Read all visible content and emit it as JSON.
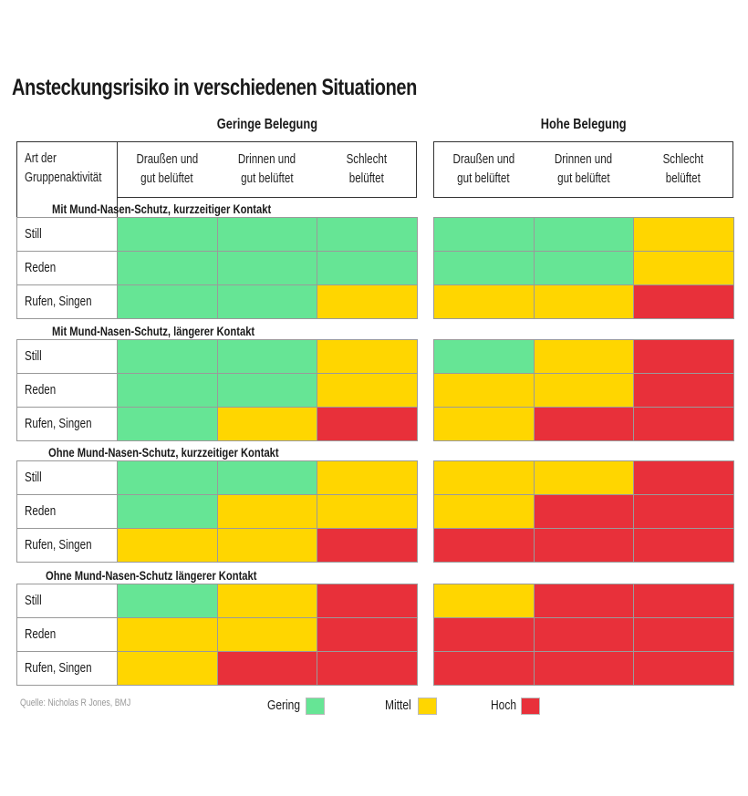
{
  "colors": {
    "Gering": "#66e595",
    "Mittel": "#ffd600",
    "Hoch": "#e8303a"
  },
  "chart_data": {
    "type": "heatmap",
    "title": "Ansteckungsrisiko in verschiedenen Situationen",
    "row_header": "Art der Gruppenaktivität",
    "groups": [
      "Geringe Belegung",
      "Hohe Belegung"
    ],
    "columns": [
      [
        "Draußen und",
        "gut belüftet"
      ],
      [
        "Drinnen und",
        "gut belüftet"
      ],
      [
        "Schlecht",
        "belüftet"
      ]
    ],
    "rows": [
      "Still",
      "Reden",
      "Rufen, Singen"
    ],
    "sections": [
      {
        "title": "Mit Mund-Nasen-Schutz, kurzzeitiger Kontakt",
        "values": [
          [
            "Gering",
            "Gering",
            "Gering",
            "Gering",
            "Gering",
            "Mittel"
          ],
          [
            "Gering",
            "Gering",
            "Gering",
            "Gering",
            "Gering",
            "Mittel"
          ],
          [
            "Gering",
            "Gering",
            "Mittel",
            "Mittel",
            "Mittel",
            "Hoch"
          ]
        ]
      },
      {
        "title": "Mit Mund-Nasen-Schutz,  längerer Kontakt",
        "values": [
          [
            "Gering",
            "Gering",
            "Mittel",
            "Gering",
            "Mittel",
            "Hoch"
          ],
          [
            "Gering",
            "Gering",
            "Mittel",
            "Mittel",
            "Mittel",
            "Hoch"
          ],
          [
            "Gering",
            "Mittel",
            "Hoch",
            "Mittel",
            "Hoch",
            "Hoch"
          ]
        ]
      },
      {
        "title": "Ohne Mund-Nasen-Schutz, kurzzeitiger Kontakt",
        "values": [
          [
            "Gering",
            "Gering",
            "Mittel",
            "Mittel",
            "Mittel",
            "Hoch"
          ],
          [
            "Gering",
            "Mittel",
            "Mittel",
            "Mittel",
            "Hoch",
            "Hoch"
          ],
          [
            "Mittel",
            "Mittel",
            "Hoch",
            "Hoch",
            "Hoch",
            "Hoch"
          ]
        ]
      },
      {
        "title": "Ohne Mund-Nasen-Schutz längerer Kontakt",
        "values": [
          [
            "Gering",
            "Mittel",
            "Hoch",
            "Mittel",
            "Hoch",
            "Hoch"
          ],
          [
            "Mittel",
            "Mittel",
            "Hoch",
            "Hoch",
            "Hoch",
            "Hoch"
          ],
          [
            "Mittel",
            "Hoch",
            "Hoch",
            "Hoch",
            "Hoch",
            "Hoch"
          ]
        ]
      }
    ],
    "legend": [
      "Gering",
      "Mittel",
      "Hoch"
    ],
    "legend_position": "bottom"
  },
  "source": "Quelle: Nicholas R Jones, BMJ"
}
